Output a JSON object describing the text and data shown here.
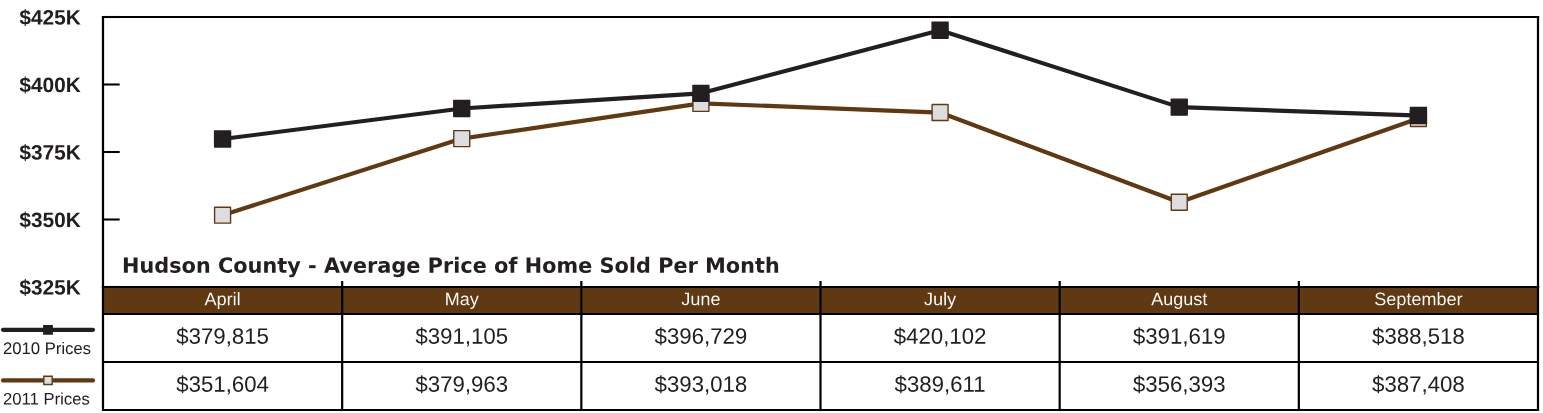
{
  "chart_data": {
    "type": "line",
    "title": "Hudson County - Average Price of Home Sold Per Month",
    "categories": [
      "April",
      "May",
      "June",
      "July",
      "August",
      "September"
    ],
    "series": [
      {
        "name": "2010 Prices",
        "color": "#231f20",
        "values": [
          379815,
          391105,
          396729,
          420102,
          391619,
          388518
        ],
        "value_labels": [
          "$379,815",
          "$391,105",
          "$396,729",
          "$420,102",
          "$391,619",
          "$388,518"
        ]
      },
      {
        "name": "2011 Prices",
        "color": "#603913",
        "colors": [
          "#dcddde",
          "#dcddde",
          "#dcddde",
          "#dcddde",
          "#dcddde",
          "#dcddde"
        ],
        "values": [
          351604,
          379963,
          393018,
          389611,
          356393,
          387408
        ],
        "value_labels": [
          "$351,604",
          "$379,963",
          "$393,018",
          "$389,611",
          "$356,393",
          "$387,408"
        ]
      }
    ],
    "ylim": [
      325000,
      425000
    ],
    "yticks": [
      {
        "value": 325000,
        "label": "$325K"
      },
      {
        "value": 350000,
        "label": "$350K"
      },
      {
        "value": 375000,
        "label": "$375K"
      },
      {
        "value": 400000,
        "label": "$400K"
      },
      {
        "value": 425000,
        "label": "$425K"
      }
    ],
    "marker": "square",
    "line_style": "solid",
    "legend": "bottom left"
  }
}
